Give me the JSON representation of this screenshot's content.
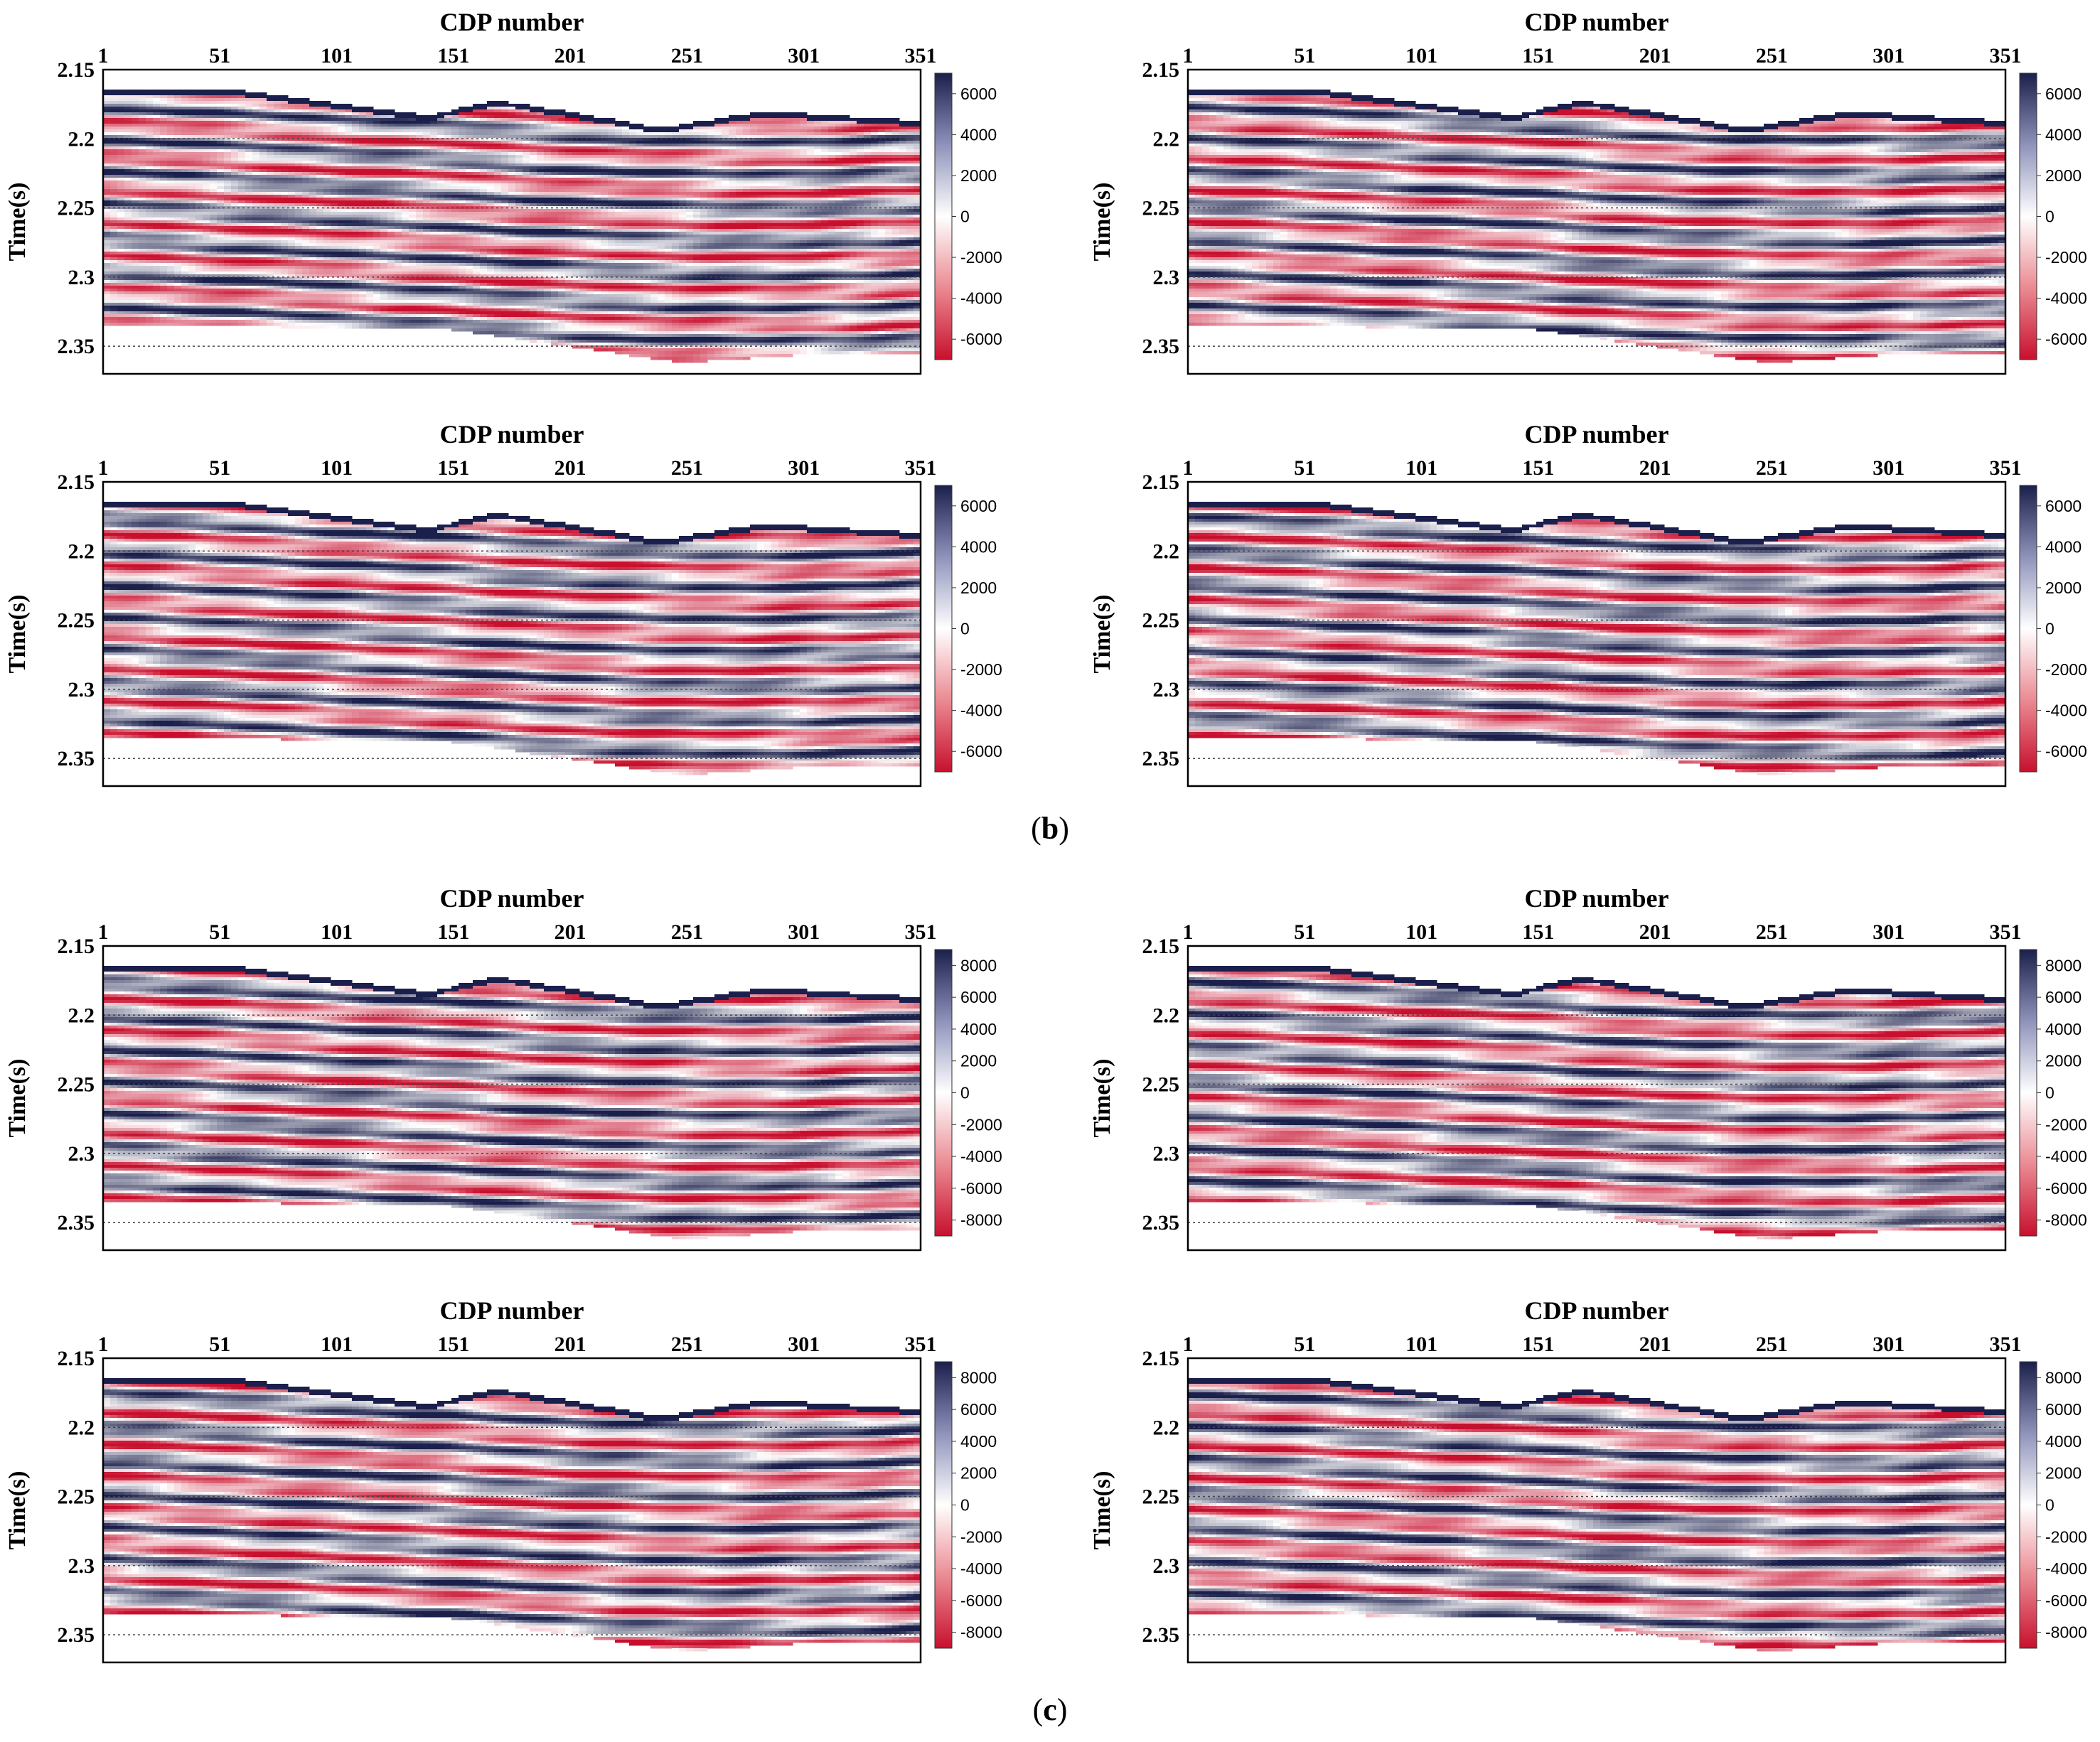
{
  "figure": {
    "captions": [
      {
        "prefix": "(",
        "letter": "b",
        "suffix": ")"
      },
      {
        "prefix": "(",
        "letter": "c",
        "suffix": ")"
      }
    ]
  },
  "chart_data": [
    {
      "type": "heatmap",
      "title": "CDP number",
      "xlabel": "CDP number",
      "ylabel": "Time(s)",
      "x_ticks": [
        "1",
        "51",
        "101",
        "151",
        "201",
        "251",
        "301",
        "351"
      ],
      "xlim": [
        1,
        351
      ],
      "y_ticks": [
        "2.15",
        "2.2",
        "2.25",
        "2.3",
        "2.35"
      ],
      "ylim": [
        2.15,
        2.37
      ],
      "colorbar": {
        "ticks": [
          "6000",
          "4000",
          "2000",
          "0",
          "-2000",
          "-4000",
          "-6000"
        ],
        "range": [
          -7000,
          7000
        ],
        "colors": [
          "#c8102e",
          "#ffffff",
          "#1b1f4b"
        ]
      },
      "gridlines_y": [
        2.2,
        2.25,
        2.3,
        2.35
      ],
      "group": "b",
      "seed": 11
    },
    {
      "type": "heatmap",
      "title": "CDP number",
      "xlabel": "CDP number",
      "ylabel": "Time(s)",
      "x_ticks": [
        "1",
        "51",
        "101",
        "151",
        "201",
        "251",
        "301",
        "351"
      ],
      "xlim": [
        1,
        351
      ],
      "y_ticks": [
        "2.15",
        "2.2",
        "2.25",
        "2.3",
        "2.35"
      ],
      "ylim": [
        2.15,
        2.37
      ],
      "colorbar": {
        "ticks": [
          "6000",
          "4000",
          "2000",
          "0",
          "-2000",
          "-4000",
          "-6000"
        ],
        "range": [
          -7000,
          7000
        ],
        "colors": [
          "#c8102e",
          "#ffffff",
          "#1b1f4b"
        ]
      },
      "gridlines_y": [
        2.2,
        2.25,
        2.3,
        2.35
      ],
      "group": "b",
      "seed": 23
    },
    {
      "type": "heatmap",
      "title": "CDP number",
      "xlabel": "CDP number",
      "ylabel": "Time(s)",
      "x_ticks": [
        "1",
        "51",
        "101",
        "151",
        "201",
        "251",
        "301",
        "351"
      ],
      "xlim": [
        1,
        351
      ],
      "y_ticks": [
        "2.15",
        "2.2",
        "2.25",
        "2.3",
        "2.35"
      ],
      "ylim": [
        2.15,
        2.37
      ],
      "colorbar": {
        "ticks": [
          "6000",
          "4000",
          "2000",
          "0",
          "-2000",
          "-4000",
          "-6000"
        ],
        "range": [
          -7000,
          7000
        ],
        "colors": [
          "#c8102e",
          "#ffffff",
          "#1b1f4b"
        ]
      },
      "gridlines_y": [
        2.2,
        2.25,
        2.3,
        2.35
      ],
      "group": "b",
      "seed": 37
    },
    {
      "type": "heatmap",
      "title": "CDP number",
      "xlabel": "CDP number",
      "ylabel": "Time(s)",
      "x_ticks": [
        "1",
        "51",
        "101",
        "151",
        "201",
        "251",
        "301",
        "351"
      ],
      "xlim": [
        1,
        351
      ],
      "y_ticks": [
        "2.15",
        "2.2",
        "2.25",
        "2.3",
        "2.35"
      ],
      "ylim": [
        2.15,
        2.37
      ],
      "colorbar": {
        "ticks": [
          "6000",
          "4000",
          "2000",
          "0",
          "-2000",
          "-4000",
          "-6000"
        ],
        "range": [
          -7000,
          7000
        ],
        "colors": [
          "#c8102e",
          "#ffffff",
          "#1b1f4b"
        ]
      },
      "gridlines_y": [
        2.2,
        2.25,
        2.3,
        2.35
      ],
      "group": "b",
      "seed": 41
    },
    {
      "type": "heatmap",
      "title": "CDP number",
      "xlabel": "CDP number",
      "ylabel": "Time(s)",
      "x_ticks": [
        "1",
        "51",
        "101",
        "151",
        "201",
        "251",
        "301",
        "351"
      ],
      "xlim": [
        1,
        351
      ],
      "y_ticks": [
        "2.15",
        "2.2",
        "2.25",
        "2.3",
        "2.35"
      ],
      "ylim": [
        2.15,
        2.37
      ],
      "colorbar": {
        "ticks": [
          "8000",
          "6000",
          "4000",
          "2000",
          "0",
          "-2000",
          "-4000",
          "-6000",
          "-8000"
        ],
        "range": [
          -9000,
          9000
        ],
        "colors": [
          "#c8102e",
          "#ffffff",
          "#1b1f4b"
        ]
      },
      "gridlines_y": [
        2.2,
        2.25,
        2.3,
        2.35
      ],
      "group": "c",
      "seed": 53
    },
    {
      "type": "heatmap",
      "title": "CDP number",
      "xlabel": "CDP number",
      "ylabel": "Time(s)",
      "x_ticks": [
        "1",
        "51",
        "101",
        "151",
        "201",
        "251",
        "301",
        "351"
      ],
      "xlim": [
        1,
        351
      ],
      "y_ticks": [
        "2.15",
        "2.2",
        "2.25",
        "2.3",
        "2.35"
      ],
      "ylim": [
        2.15,
        2.37
      ],
      "colorbar": {
        "ticks": [
          "8000",
          "6000",
          "4000",
          "2000",
          "0",
          "-2000",
          "-4000",
          "-6000",
          "-8000"
        ],
        "range": [
          -9000,
          9000
        ],
        "colors": [
          "#c8102e",
          "#ffffff",
          "#1b1f4b"
        ]
      },
      "gridlines_y": [
        2.2,
        2.25,
        2.3,
        2.35
      ],
      "group": "c",
      "seed": 67
    },
    {
      "type": "heatmap",
      "title": "CDP number",
      "xlabel": "CDP number",
      "ylabel": "Time(s)",
      "x_ticks": [
        "1",
        "51",
        "101",
        "151",
        "201",
        "251",
        "301",
        "351"
      ],
      "xlim": [
        1,
        351
      ],
      "y_ticks": [
        "2.15",
        "2.2",
        "2.25",
        "2.3",
        "2.35"
      ],
      "ylim": [
        2.15,
        2.37
      ],
      "colorbar": {
        "ticks": [
          "8000",
          "6000",
          "4000",
          "2000",
          "0",
          "-2000",
          "-4000",
          "-6000",
          "-8000"
        ],
        "range": [
          -9000,
          9000
        ],
        "colors": [
          "#c8102e",
          "#ffffff",
          "#1b1f4b"
        ]
      },
      "gridlines_y": [
        2.2,
        2.25,
        2.3,
        2.35
      ],
      "group": "c",
      "seed": 79
    },
    {
      "type": "heatmap",
      "title": "CDP number",
      "xlabel": "CDP number",
      "ylabel": "Time(s)",
      "x_ticks": [
        "1",
        "51",
        "101",
        "151",
        "201",
        "251",
        "301",
        "351"
      ],
      "xlim": [
        1,
        351
      ],
      "y_ticks": [
        "2.15",
        "2.2",
        "2.25",
        "2.3",
        "2.35"
      ],
      "ylim": [
        2.15,
        2.37
      ],
      "colorbar": {
        "ticks": [
          "8000",
          "6000",
          "4000",
          "2000",
          "0",
          "-2000",
          "-4000",
          "-6000",
          "-8000"
        ],
        "range": [
          -9000,
          9000
        ],
        "colors": [
          "#c8102e",
          "#ffffff",
          "#1b1f4b"
        ]
      },
      "gridlines_y": [
        2.2,
        2.25,
        2.3,
        2.35
      ],
      "group": "c",
      "seed": 83
    }
  ]
}
